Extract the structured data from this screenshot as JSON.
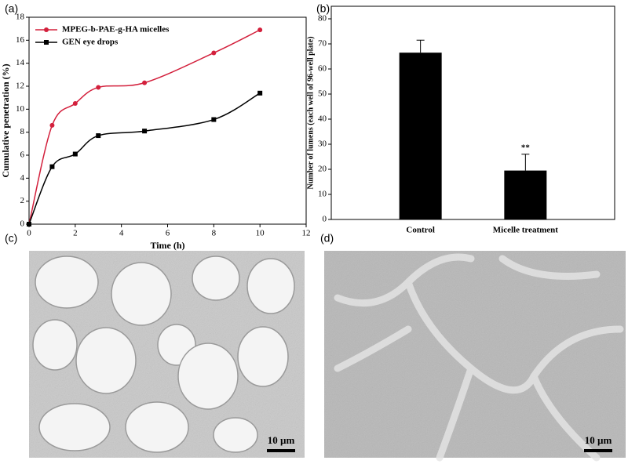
{
  "chart_data": [
    {
      "type": "line",
      "panel_label": "(a)",
      "x_label": "Time (h)",
      "y_label": "Cumulative penetration (%)",
      "x": [
        0,
        1,
        2,
        3,
        5,
        8,
        10
      ],
      "series": [
        {
          "name": "MPEG-b-PAE-g-HA micelles",
          "color": "#d3203c",
          "marker": "circle",
          "values": [
            0,
            8.6,
            10.5,
            11.9,
            12.3,
            14.9,
            16.9
          ]
        },
        {
          "name": "GEN eye drops",
          "color": "#000000",
          "marker": "square",
          "values": [
            0,
            5.0,
            6.1,
            7.7,
            8.1,
            9.1,
            11.4
          ]
        }
      ],
      "xlim": [
        0,
        12
      ],
      "xticks": [
        0,
        2,
        4,
        6,
        8,
        10,
        12
      ],
      "ylim": [
        0,
        18
      ],
      "yticks": [
        0,
        2,
        4,
        6,
        8,
        10,
        12,
        14,
        16,
        18
      ],
      "legend": "upper-left"
    },
    {
      "type": "bar",
      "panel_label": "(b)",
      "y_label": "Number of lumens (each well of 96-well plate)",
      "categories": [
        "Control",
        "Micelle treatment"
      ],
      "values": [
        66.5,
        19.5
      ],
      "errors": [
        5,
        6.5
      ],
      "annotations": [
        null,
        "**"
      ],
      "color": "#000000",
      "ylim": [
        0,
        85
      ],
      "yticks": [
        0,
        10,
        20,
        30,
        40,
        50,
        60,
        70,
        80
      ]
    }
  ],
  "images": [
    {
      "panel_label": "(c)",
      "scale_bar": "10 µm"
    },
    {
      "panel_label": "(d)",
      "scale_bar": "10 µm"
    }
  ]
}
